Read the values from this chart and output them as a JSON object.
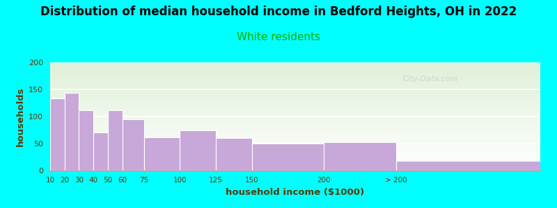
{
  "title": "Distribution of median household income in Bedford Heights, OH in 2022",
  "subtitle": "White residents",
  "xlabel": "household income ($1000)",
  "ylabel": "households",
  "title_fontsize": 12,
  "subtitle_fontsize": 11,
  "subtitle_color": "#00aa00",
  "categories": [
    "10",
    "20",
    "30",
    "40",
    "50",
    "60",
    "75",
    "100",
    "125",
    "150",
    "200",
    "> 200"
  ],
  "values": [
    133,
    143,
    112,
    70,
    112,
    95,
    62,
    75,
    60,
    50,
    53,
    18
  ],
  "bar_color": "#c8a8d8",
  "background_outer": "#00ffff",
  "background_plot_top": "#dff0d8",
  "background_plot_bottom": "#ffffff",
  "ylim": [
    0,
    200
  ],
  "yticks": [
    0,
    50,
    100,
    150,
    200
  ],
  "watermark": "City-Data.com",
  "bar_lefts": [
    10,
    20,
    30,
    40,
    50,
    60,
    75,
    100,
    125,
    150,
    200,
    250
  ],
  "bar_widths": [
    10,
    10,
    10,
    10,
    10,
    15,
    25,
    25,
    25,
    50,
    50,
    100
  ],
  "xlim": [
    10,
    350
  ],
  "tick_positions": [
    10,
    20,
    30,
    40,
    50,
    60,
    75,
    100,
    125,
    150,
    200,
    250
  ]
}
